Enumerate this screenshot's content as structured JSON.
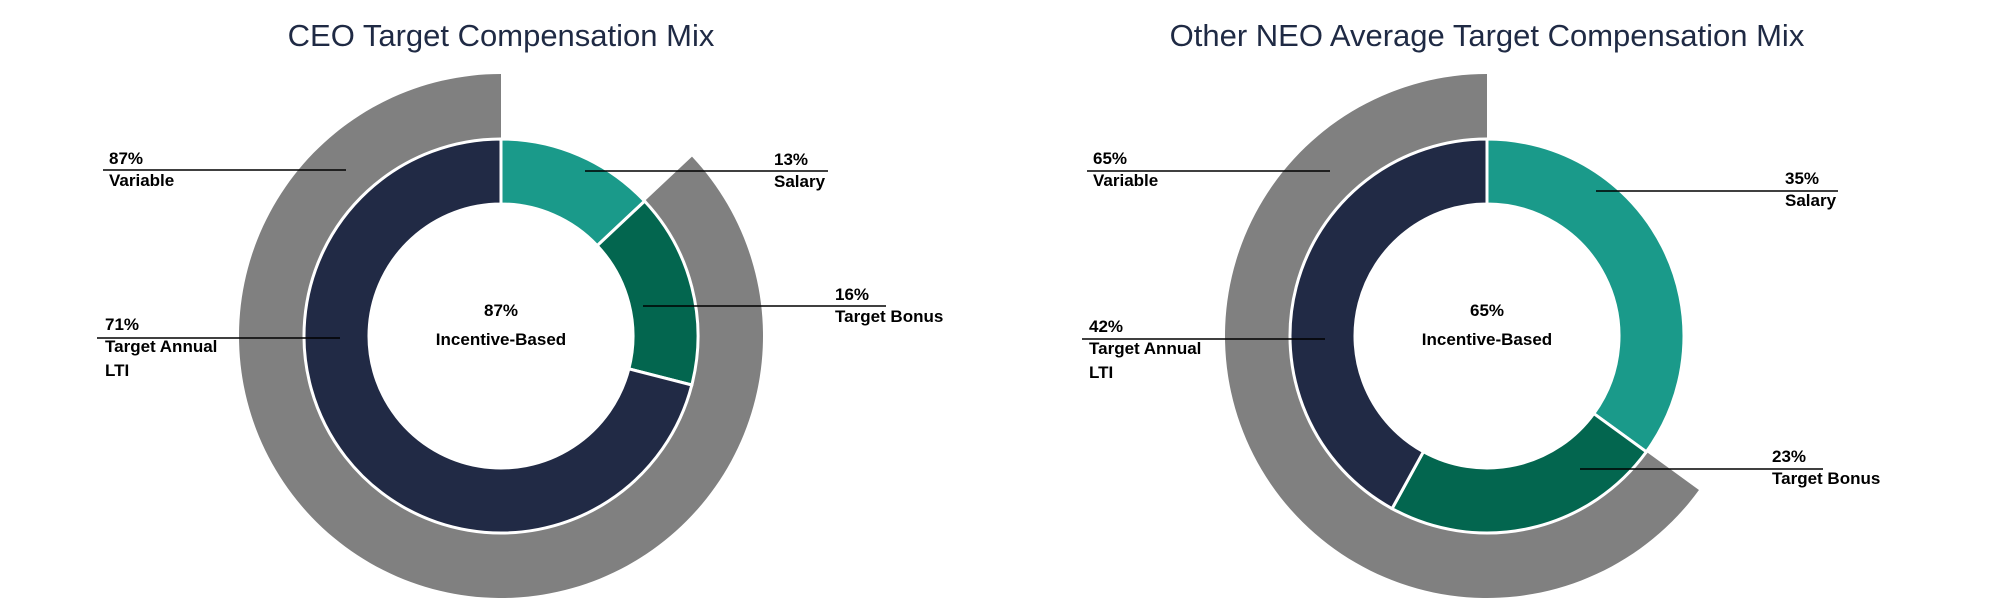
{
  "chart_data": [
    {
      "type": "donut",
      "title": "CEO Target Compensation Mix",
      "center_label": {
        "value": "87%",
        "text": "Incentive-Based"
      },
      "inner_series": [
        {
          "name": "Salary",
          "value": 13,
          "label": "13%",
          "color": "#1a9a8a"
        },
        {
          "name": "Target Bonus",
          "value": 16,
          "label": "16%",
          "color": "#03664f"
        },
        {
          "name": "Target Annual LTI",
          "value": 71,
          "label": "71%",
          "color": "#212a45"
        }
      ],
      "outer_series": [
        {
          "name": "Variable",
          "value": 87,
          "label": "87%",
          "color": "#808080",
          "start": 13
        }
      ],
      "label_lines": {
        "Variable": [
          "Variable"
        ],
        "Target Annual LTI": [
          "Target Annual",
          "LTI"
        ],
        "Salary": [
          "Salary"
        ],
        "Target Bonus": [
          "Target Bonus"
        ]
      }
    },
    {
      "type": "donut",
      "title": "Other NEO Average Target Compensation Mix",
      "center_label": {
        "value": "65%",
        "text": "Incentive-Based"
      },
      "inner_series": [
        {
          "name": "Salary",
          "value": 35,
          "label": "35%",
          "color": "#1a9a8a"
        },
        {
          "name": "Target Bonus",
          "value": 23,
          "label": "23%",
          "color": "#03664f"
        },
        {
          "name": "Target Annual LTI",
          "value": 42,
          "label": "42%",
          "color": "#212a45"
        }
      ],
      "outer_series": [
        {
          "name": "Variable",
          "value": 65,
          "label": "65%",
          "color": "#808080",
          "start": 35
        }
      ],
      "label_lines": {
        "Variable": [
          "Variable"
        ],
        "Target Annual LTI": [
          "Target Annual",
          "LTI"
        ],
        "Salary": [
          "Salary"
        ],
        "Target Bonus": [
          "Target Bonus"
        ]
      }
    }
  ]
}
